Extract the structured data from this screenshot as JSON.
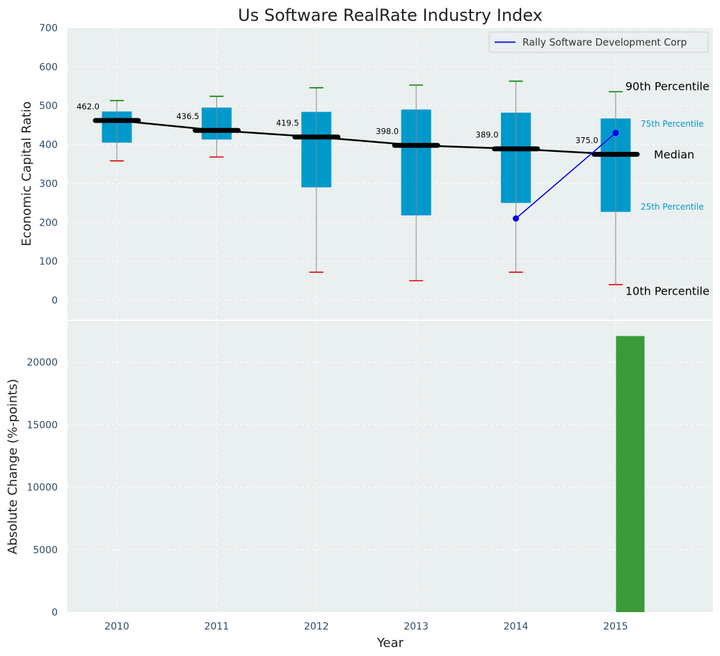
{
  "colors": {
    "plot_bg": "#eaeff0",
    "grid": "#ffffff",
    "box": "#0099cc",
    "whisker": "#888888",
    "cap_high": "#008000",
    "cap_low": "#dd0000",
    "median_line": "#000000",
    "company": "#0000ee",
    "bar": "#3a9a3a",
    "percentile_small": "#0099cc"
  },
  "chart_data": [
    {
      "type": "box",
      "title": "Us Software RealRate Industry Index",
      "ylabel": "Economic Capital Ratio",
      "ylim": [
        -50,
        700
      ],
      "yticks": [
        0,
        100,
        200,
        300,
        400,
        500,
        600,
        700
      ],
      "categories": [
        "2010",
        "2011",
        "2012",
        "2013",
        "2014",
        "2015"
      ],
      "p10": [
        358,
        368,
        72,
        50,
        72,
        40
      ],
      "p25": [
        405,
        413,
        290,
        218,
        250,
        227
      ],
      "median": [
        462.0,
        436.5,
        419.5,
        398.0,
        389.0,
        375.0
      ],
      "median_labels": [
        "462.0",
        "436.5",
        "419.5",
        "398.0",
        "389.0",
        "375.0"
      ],
      "p75": [
        485,
        495,
        484,
        490,
        482,
        467
      ],
      "p90": [
        513,
        524,
        546,
        553,
        563,
        536
      ],
      "grid": true,
      "legend": {
        "position": "top-right",
        "entries": [
          "Rally Software Development Corp"
        ]
      },
      "series": [
        {
          "name": "Rally Software Development Corp",
          "x": [
            "2014",
            "2015"
          ],
          "values": [
            210,
            430
          ]
        }
      ],
      "annotations": {
        "p90": "90th Percentile",
        "p75": "75th Percentile",
        "median": "Median",
        "p25": "25th Percentile",
        "p10": "10th Percentile"
      }
    },
    {
      "type": "bar",
      "xlabel": "Year",
      "ylabel": "Absolute Change (%-points)",
      "ylim": [
        0,
        23300
      ],
      "yticks": [
        0,
        5000,
        10000,
        15000,
        20000
      ],
      "categories": [
        "2010",
        "2011",
        "2012",
        "2013",
        "2014",
        "2015"
      ],
      "values": [
        0,
        0,
        0,
        0,
        0,
        22100
      ],
      "grid": true
    }
  ]
}
